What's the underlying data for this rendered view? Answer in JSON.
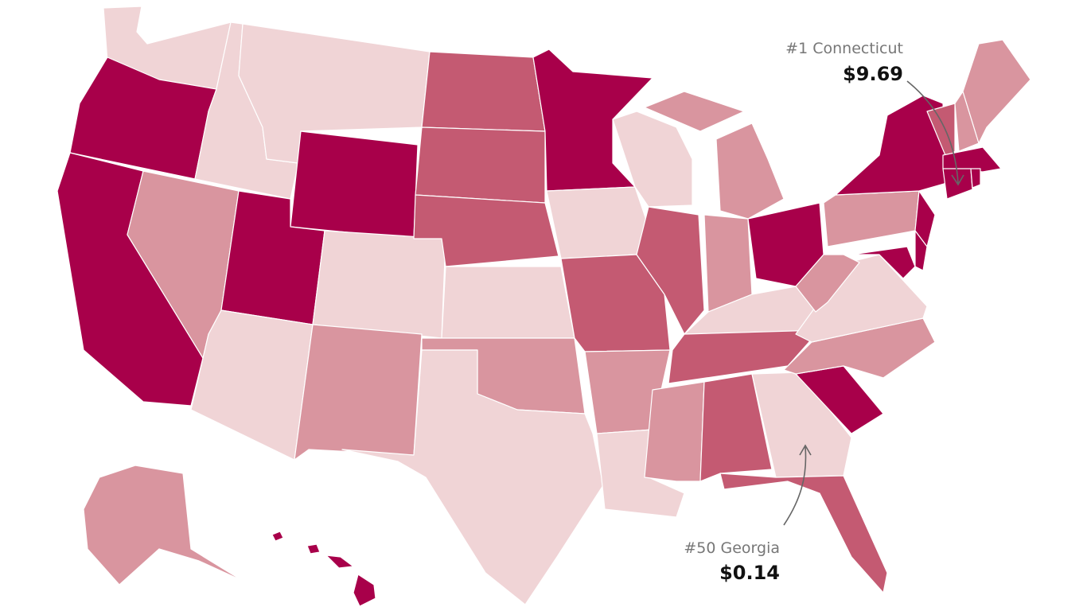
{
  "annotations": [
    {
      "label": "#1 Connecticut",
      "value": "$9.69"
    },
    {
      "label": "#50 Georgia",
      "value": "$0.14"
    }
  ]
}
